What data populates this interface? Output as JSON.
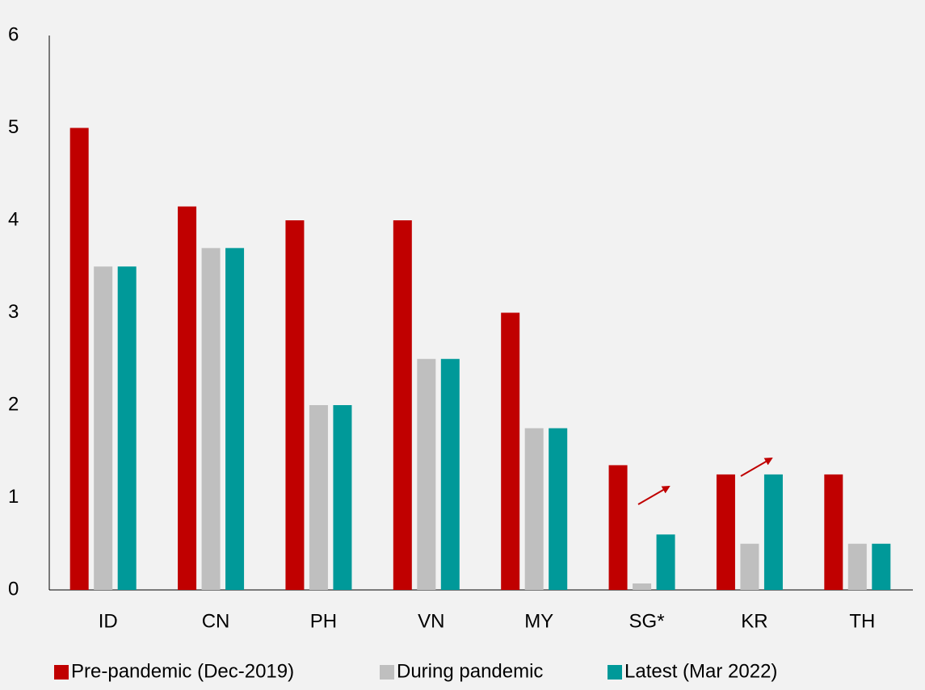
{
  "chart_data": {
    "type": "bar",
    "categories": [
      "ID",
      "CN",
      "PH",
      "VN",
      "MY",
      "SG*",
      "KR",
      "TH"
    ],
    "series": [
      {
        "name": "Pre-pandemic (Dec-2019)",
        "color": "#c00000",
        "values": [
          5,
          4.15,
          4,
          4,
          3,
          1.35,
          1.25,
          1.25
        ]
      },
      {
        "name": "During pandemic",
        "color": "#bfbfbf",
        "values": [
          3.5,
          3.7,
          2,
          2.5,
          1.75,
          0.07,
          0.5,
          0.5
        ]
      },
      {
        "name": "Latest (Mar 2022)",
        "color": "#009999",
        "values": [
          3.5,
          3.7,
          2,
          2.5,
          1.75,
          0.6,
          1.25,
          0.5
        ]
      }
    ],
    "ylim": [
      0,
      6
    ],
    "yticks": [
      0,
      1,
      2,
      3,
      4,
      5,
      6
    ],
    "grid": false,
    "legend": "bottom"
  }
}
